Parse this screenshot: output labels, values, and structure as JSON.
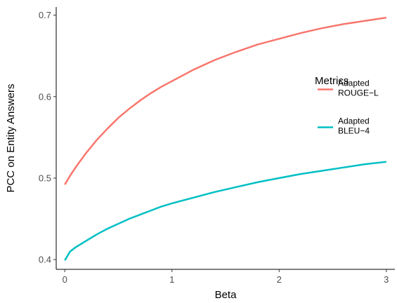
{
  "chart_data": {
    "type": "line",
    "title": "",
    "xlabel": "Beta",
    "ylabel": "PCC on Entity Answers",
    "xlim": [
      -0.08,
      3.08
    ],
    "ylim": [
      0.388,
      0.71
    ],
    "xticks": [
      0,
      1,
      2,
      3
    ],
    "xtick_labels": [
      "0",
      "1",
      "2",
      "3"
    ],
    "yticks": [
      0.4,
      0.5,
      0.6,
      0.7
    ],
    "ytick_labels": [
      "0.4",
      "0.5",
      "0.6",
      "0.7"
    ],
    "grid": false,
    "legend": {
      "title": "Metrics",
      "placement": "right",
      "entries": [
        {
          "line1": "Adapted",
          "line2": "ROUGE−L",
          "color": "#F8766D"
        },
        {
          "line1": "Adapted",
          "line2": "BLEU−4",
          "color": "#00BFC4"
        }
      ]
    },
    "series": [
      {
        "name": "Adapted ROUGE-L",
        "color": "#F8766D",
        "x": [
          0,
          0.05,
          0.1,
          0.2,
          0.3,
          0.4,
          0.5,
          0.6,
          0.7,
          0.8,
          0.9,
          1.0,
          1.2,
          1.4,
          1.6,
          1.8,
          2.0,
          2.2,
          2.4,
          2.6,
          2.8,
          3.0
        ],
        "values": [
          0.492,
          0.503,
          0.513,
          0.531,
          0.547,
          0.561,
          0.574,
          0.585,
          0.595,
          0.604,
          0.612,
          0.619,
          0.633,
          0.645,
          0.655,
          0.664,
          0.671,
          0.678,
          0.684,
          0.689,
          0.693,
          0.697
        ]
      },
      {
        "name": "Adapted BLEU-4",
        "color": "#00BFC4",
        "x": [
          0,
          0.05,
          0.1,
          0.2,
          0.3,
          0.4,
          0.5,
          0.6,
          0.7,
          0.8,
          0.9,
          1.0,
          1.2,
          1.4,
          1.6,
          1.8,
          2.0,
          2.2,
          2.4,
          2.6,
          2.8,
          3.0
        ],
        "values": [
          0.399,
          0.41,
          0.415,
          0.423,
          0.431,
          0.438,
          0.444,
          0.45,
          0.455,
          0.46,
          0.465,
          0.469,
          0.476,
          0.483,
          0.489,
          0.495,
          0.5,
          0.505,
          0.509,
          0.513,
          0.517,
          0.52
        ]
      }
    ]
  }
}
